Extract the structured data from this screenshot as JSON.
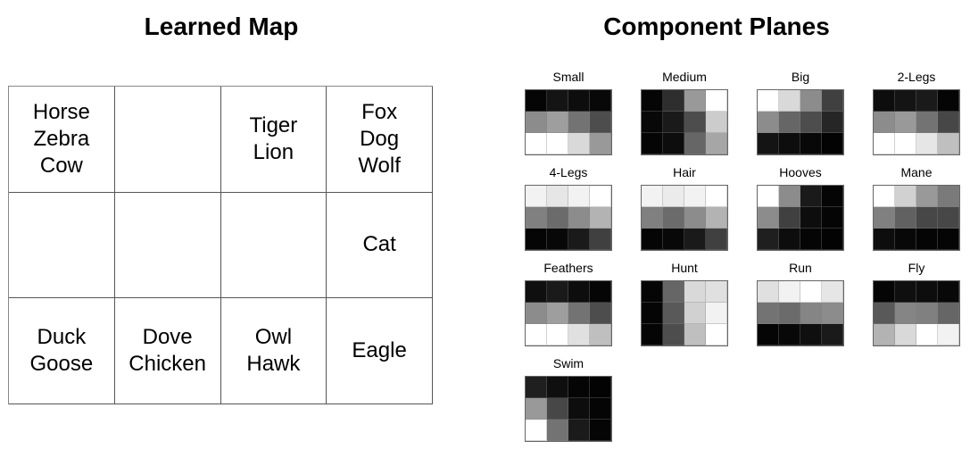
{
  "learned_map": {
    "title": "Learned Map",
    "cells": [
      "Horse\nZebra\nCow",
      "",
      "Tiger\nLion",
      "Fox\nDog\nWolf",
      "",
      "",
      "",
      "Cat",
      "Duck\nGoose",
      "Dove\nChicken",
      "Owl\nHawk",
      "Eagle"
    ]
  },
  "component_planes": {
    "title": "Component Planes",
    "planes": [
      {
        "label": "Small",
        "values": [
          0.02,
          0.08,
          0.05,
          0.03,
          0.55,
          0.62,
          0.45,
          0.3,
          1.0,
          1.0,
          0.85,
          0.6
        ]
      },
      {
        "label": "Medium",
        "values": [
          0.02,
          0.18,
          0.6,
          1.0,
          0.03,
          0.1,
          0.3,
          0.8,
          0.02,
          0.05,
          0.4,
          0.65
        ]
      },
      {
        "label": "Big",
        "values": [
          1.0,
          0.85,
          0.55,
          0.25,
          0.55,
          0.4,
          0.3,
          0.15,
          0.08,
          0.05,
          0.03,
          0.01
        ]
      },
      {
        "label": "2-Legs",
        "values": [
          0.05,
          0.08,
          0.1,
          0.02,
          0.55,
          0.6,
          0.45,
          0.28,
          1.0,
          1.0,
          0.9,
          0.75
        ]
      },
      {
        "label": "4-Legs",
        "values": [
          0.95,
          0.9,
          0.95,
          1.0,
          0.5,
          0.42,
          0.55,
          0.7,
          0.02,
          0.03,
          0.1,
          0.25
        ]
      },
      {
        "label": "Hair",
        "values": [
          0.95,
          0.92,
          0.95,
          1.0,
          0.5,
          0.42,
          0.55,
          0.7,
          0.02,
          0.03,
          0.1,
          0.25
        ]
      },
      {
        "label": "Hooves",
        "values": [
          1.0,
          0.55,
          0.1,
          0.02,
          0.55,
          0.25,
          0.05,
          0.02,
          0.12,
          0.05,
          0.02,
          0.01
        ]
      },
      {
        "label": "Mane",
        "values": [
          1.0,
          0.82,
          0.6,
          0.48,
          0.5,
          0.38,
          0.28,
          0.28,
          0.05,
          0.03,
          0.02,
          0.02
        ]
      },
      {
        "label": "Feathers",
        "values": [
          0.06,
          0.1,
          0.05,
          0.02,
          0.55,
          0.62,
          0.45,
          0.3,
          1.0,
          1.0,
          0.88,
          0.75
        ]
      },
      {
        "label": "Hunt",
        "values": [
          0.02,
          0.4,
          0.85,
          0.88,
          0.02,
          0.35,
          0.82,
          0.95,
          0.02,
          0.3,
          0.75,
          1.0
        ]
      },
      {
        "label": "Run",
        "values": [
          0.88,
          0.95,
          1.0,
          0.9,
          0.45,
          0.42,
          0.52,
          0.55,
          0.02,
          0.03,
          0.06,
          0.1
        ]
      },
      {
        "label": "Fly",
        "values": [
          0.02,
          0.06,
          0.05,
          0.03,
          0.35,
          0.52,
          0.5,
          0.4,
          0.7,
          0.85,
          1.0,
          0.95
        ]
      },
      {
        "label": "Swim",
        "values": [
          0.12,
          0.06,
          0.02,
          0.01,
          0.6,
          0.28,
          0.05,
          0.02,
          1.0,
          0.45,
          0.1,
          0.02
        ]
      }
    ]
  }
}
